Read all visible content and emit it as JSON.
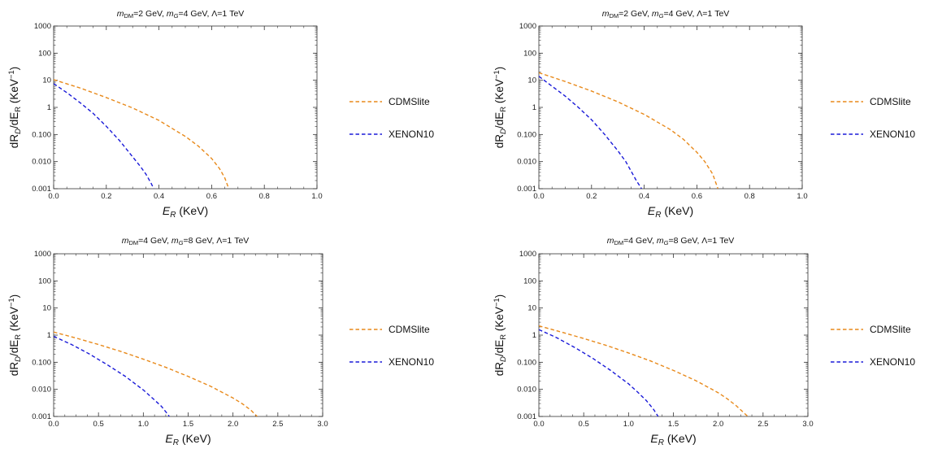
{
  "figure": {
    "colors": {
      "CDMSlite": "#E8891A",
      "XENON10": "#1A1AD8",
      "axis": "#333333"
    }
  },
  "chart_data": [
    {
      "type": "line",
      "title": "mDM=2 GeV, mG=4 GeV, Λ=1 TeV",
      "title_parts": {
        "m1": "m",
        "sub1": "DM",
        "eq1": "=2 GeV, ",
        "m2": "m",
        "sub2": "G",
        "eq2": "=4 GeV, Λ=1 TeV"
      },
      "xlabel": "E_R (KeV)",
      "xlabel_parts": {
        "main": "E",
        "sub": "R",
        "unit": " (KeV)"
      },
      "ylabel": "dR_D/dE_R (KeV^-1)",
      "xlim": [
        0,
        1.0
      ],
      "ylim": [
        0.001,
        1000
      ],
      "yscale": "log",
      "xticks": [
        "0.0",
        "0.2",
        "0.4",
        "0.6",
        "0.8",
        "1.0"
      ],
      "yticks": [
        "0.001",
        "0.010",
        "0.100",
        "1",
        "10",
        "100",
        "1000"
      ],
      "legend": "right",
      "series": [
        {
          "name": "CDMSlite",
          "x": [
            0,
            0.1,
            0.2,
            0.3,
            0.4,
            0.5,
            0.55,
            0.6,
            0.63,
            0.65,
            0.665
          ],
          "y": [
            10.5,
            5.2,
            2.3,
            0.95,
            0.33,
            0.085,
            0.037,
            0.013,
            0.0055,
            0.0025,
            0.001
          ]
        },
        {
          "name": "XENON10",
          "x": [
            0,
            0.05,
            0.1,
            0.15,
            0.2,
            0.25,
            0.3,
            0.33,
            0.35,
            0.37,
            0.38
          ],
          "y": [
            7.5,
            3.5,
            1.5,
            0.6,
            0.2,
            0.06,
            0.015,
            0.0065,
            0.0035,
            0.0016,
            0.001
          ]
        }
      ]
    },
    {
      "type": "line",
      "title": "mDM=2 GeV, mG=4 GeV, Λ=1 TeV",
      "title_parts": {
        "m1": "m",
        "sub1": "DM",
        "eq1": "=2 GeV, ",
        "m2": "m",
        "sub2": "G",
        "eq2": "=4 GeV, Λ=1 TeV"
      },
      "xlabel": "E_R (KeV)",
      "xlabel_parts": {
        "main": "E",
        "sub": "R",
        "unit": " (KeV)"
      },
      "ylabel": "dR_D/dE_R (KeV^-1)",
      "xlim": [
        0,
        1.0
      ],
      "ylim": [
        0.001,
        1000
      ],
      "yscale": "log",
      "xticks": [
        "0.0",
        "0.2",
        "0.4",
        "0.6",
        "0.8",
        "1.0"
      ],
      "yticks": [
        "0.001",
        "0.010",
        "0.100",
        "1",
        "10",
        "100",
        "1000"
      ],
      "legend": "right",
      "series": [
        {
          "name": "CDMSlite",
          "x": [
            0,
            0.1,
            0.2,
            0.3,
            0.4,
            0.5,
            0.55,
            0.6,
            0.63,
            0.66,
            0.68
          ],
          "y": [
            19,
            9,
            4,
            1.6,
            0.55,
            0.15,
            0.065,
            0.022,
            0.01,
            0.0035,
            0.001
          ]
        },
        {
          "name": "XENON10",
          "x": [
            0,
            0.05,
            0.1,
            0.15,
            0.2,
            0.25,
            0.3,
            0.33,
            0.35,
            0.37,
            0.39
          ],
          "y": [
            14,
            6,
            2.6,
            1.0,
            0.35,
            0.1,
            0.025,
            0.01,
            0.0045,
            0.002,
            0.001
          ]
        }
      ]
    },
    {
      "type": "line",
      "title": "mDM=4 GeV, mG=8 GeV, Λ=1 TeV",
      "title_parts": {
        "m1": "m",
        "sub1": "DM",
        "eq1": "=4 GeV, ",
        "m2": "m",
        "sub2": "G",
        "eq2": "=8 GeV, Λ=1 TeV"
      },
      "xlabel": "E_R (KeV)",
      "xlabel_parts": {
        "main": "E",
        "sub": "R",
        "unit": " (KeV)"
      },
      "ylabel": "dR_D/dE_R (KeV^-1)",
      "xlim": [
        0,
        3.0
      ],
      "ylim": [
        0.001,
        1000
      ],
      "yscale": "log",
      "xticks": [
        "0.0",
        "0.5",
        "1.0",
        "1.5",
        "2.0",
        "2.5",
        "3.0"
      ],
      "yticks": [
        "0.001",
        "0.010",
        "0.100",
        "1",
        "10",
        "100",
        "1000"
      ],
      "legend": "right",
      "series": [
        {
          "name": "CDMSlite",
          "x": [
            0,
            0.25,
            0.5,
            0.75,
            1.0,
            1.25,
            1.5,
            1.75,
            2.0,
            2.1,
            2.2,
            2.27
          ],
          "y": [
            1.3,
            0.78,
            0.45,
            0.25,
            0.13,
            0.065,
            0.03,
            0.013,
            0.0048,
            0.003,
            0.0017,
            0.001
          ]
        },
        {
          "name": "XENON10",
          "x": [
            0,
            0.2,
            0.4,
            0.6,
            0.8,
            1.0,
            1.1,
            1.2,
            1.25,
            1.29
          ],
          "y": [
            0.9,
            0.45,
            0.2,
            0.08,
            0.03,
            0.0095,
            0.0048,
            0.0024,
            0.0015,
            0.001
          ]
        }
      ]
    },
    {
      "type": "line",
      "title": "mDM=4 GeV, mG=8 GeV, Λ=1 TeV",
      "title_parts": {
        "m1": "m",
        "sub1": "DM",
        "eq1": "=4 GeV, ",
        "m2": "m",
        "sub2": "G",
        "eq2": "=8 GeV, Λ=1 TeV"
      },
      "xlabel": "E_R (KeV)",
      "xlabel_parts": {
        "main": "E",
        "sub": "R",
        "unit": " (KeV)"
      },
      "ylabel": "dR_D/dE_R (KeV^-1)",
      "xlim": [
        0,
        3.0
      ],
      "ylim": [
        0.001,
        1000
      ],
      "yscale": "log",
      "xticks": [
        "0.0",
        "0.5",
        "1.0",
        "1.5",
        "2.0",
        "2.5",
        "3.0"
      ],
      "yticks": [
        "0.001",
        "0.010",
        "0.100",
        "1",
        "10",
        "100",
        "1000"
      ],
      "legend": "right",
      "series": [
        {
          "name": "CDMSlite",
          "x": [
            0,
            0.25,
            0.5,
            0.75,
            1.0,
            1.25,
            1.5,
            1.75,
            2.0,
            2.1,
            2.2,
            2.33
          ],
          "y": [
            2.2,
            1.3,
            0.75,
            0.42,
            0.22,
            0.11,
            0.05,
            0.021,
            0.0075,
            0.0045,
            0.0025,
            0.001
          ]
        },
        {
          "name": "XENON10",
          "x": [
            0,
            0.2,
            0.4,
            0.6,
            0.8,
            1.0,
            1.1,
            1.2,
            1.28,
            1.33
          ],
          "y": [
            1.6,
            0.8,
            0.35,
            0.14,
            0.05,
            0.016,
            0.008,
            0.0038,
            0.0018,
            0.001
          ]
        }
      ]
    }
  ]
}
